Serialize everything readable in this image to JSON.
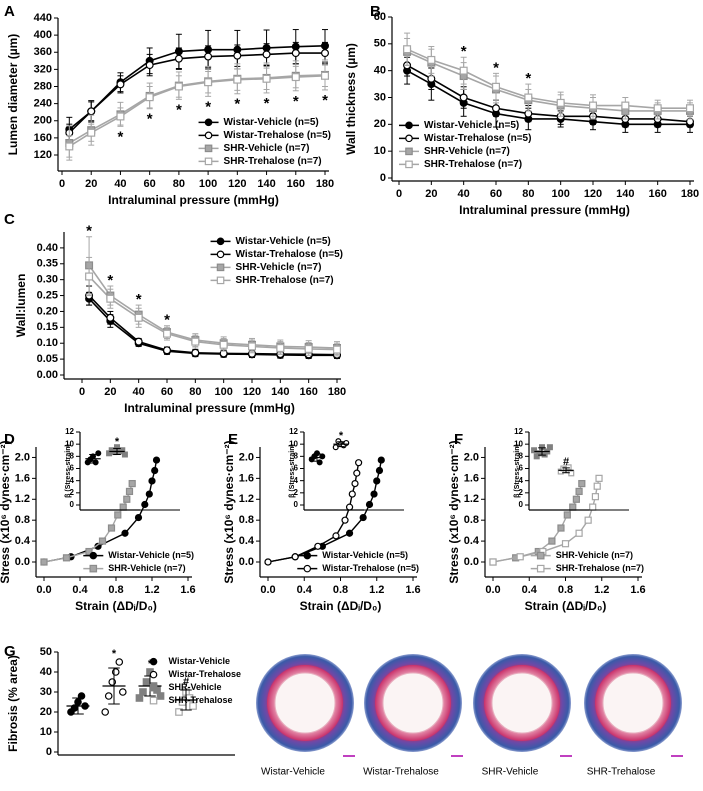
{
  "panel_labels": [
    "A",
    "B",
    "C",
    "D",
    "E",
    "F",
    "G"
  ],
  "chart_data": [
    {
      "type": "line",
      "xlabel": "Intraluminal pressure (mmHg)",
      "ylabel": "Lumen diameter (µm)",
      "x": [
        5,
        20,
        40,
        60,
        80,
        100,
        120,
        140,
        160,
        180
      ],
      "xlim": [
        0,
        180
      ],
      "xticks": [
        0,
        20,
        40,
        60,
        80,
        100,
        120,
        140,
        160,
        180
      ],
      "ylim": [
        120,
        440
      ],
      "yticks": [
        120,
        160,
        200,
        240,
        280,
        320,
        360,
        400,
        440
      ],
      "legend": "lower right",
      "annotation_position": "below",
      "annotations": [
        null,
        null,
        "*",
        "*",
        "*",
        "*",
        "*",
        "*",
        "*",
        "*"
      ],
      "series": [
        {
          "name": "Wistar-Vehicle (n=5)",
          "color": "#000000",
          "marker": "circle",
          "filled": true,
          "values": [
            180,
            222,
            290,
            340,
            362,
            366,
            366,
            370,
            373,
            375
          ],
          "errors": [
            28,
            25,
            22,
            30,
            40,
            45,
            45,
            42,
            40,
            38
          ]
        },
        {
          "name": "Wistar-Trehalose (n=5)",
          "color": "#000000",
          "marker": "circle",
          "filled": false,
          "values": [
            172,
            222,
            285,
            330,
            345,
            350,
            352,
            355,
            358,
            358
          ],
          "errors": [
            20,
            22,
            20,
            25,
            25,
            25,
            25,
            25,
            25,
            25
          ]
        },
        {
          "name": "SHR-Vehicle (n=7)",
          "color": "#a6a6a6",
          "marker": "square",
          "filled": true,
          "values": [
            148,
            178,
            215,
            258,
            282,
            292,
            298,
            300,
            305,
            307
          ],
          "errors": [
            40,
            35,
            28,
            30,
            32,
            35,
            35,
            35,
            35,
            35
          ]
        },
        {
          "name": "SHR-Trehalose (n=7)",
          "color": "#a6a6a6",
          "marker": "square",
          "filled": false,
          "values": [
            140,
            172,
            210,
            255,
            280,
            290,
            296,
            298,
            302,
            305
          ],
          "errors": [
            25,
            20,
            20,
            25,
            25,
            25,
            25,
            25,
            25,
            25
          ]
        }
      ]
    },
    {
      "type": "line",
      "xlabel": "Intraluminal pressure (mmHg)",
      "ylabel": "Wall thickness (µm)",
      "x": [
        5,
        20,
        40,
        60,
        80,
        100,
        120,
        140,
        160,
        180
      ],
      "xlim": [
        0,
        180
      ],
      "xticks": [
        0,
        20,
        40,
        60,
        80,
        100,
        120,
        140,
        160,
        180
      ],
      "ylim": [
        0,
        60
      ],
      "yticks": [
        0,
        10,
        20,
        30,
        40,
        50,
        60
      ],
      "legend": "lower left",
      "annotation_position": "above",
      "annotations": [
        null,
        null,
        "*",
        "*",
        "*",
        null,
        null,
        null,
        null,
        null
      ],
      "series": [
        {
          "name": "Wistar-Vehicle (n=5)",
          "color": "#000000",
          "marker": "circle",
          "filled": true,
          "values": [
            40,
            35,
            28,
            24,
            22,
            22,
            21,
            20,
            20,
            20
          ],
          "errors": [
            5,
            6,
            5,
            5,
            4,
            3,
            3,
            3,
            3,
            3
          ]
        },
        {
          "name": "Wistar-Trehalose (n=5)",
          "color": "#000000",
          "marker": "circle",
          "filled": false,
          "values": [
            42,
            37,
            30,
            26,
            24,
            23,
            23,
            22,
            22,
            21
          ],
          "errors": [
            4,
            4,
            4,
            3,
            3,
            3,
            3,
            3,
            3,
            2
          ]
        },
        {
          "name": "SHR-Vehicle (n=7)",
          "color": "#a6a6a6",
          "marker": "square",
          "filled": true,
          "values": [
            47,
            43,
            38,
            33,
            29,
            27,
            26,
            25,
            25,
            25
          ],
          "errors": [
            5,
            5,
            5,
            5,
            4,
            4,
            4,
            3,
            3,
            3
          ]
        },
        {
          "name": "SHR-Trehalose (n=7)",
          "color": "#a6a6a6",
          "marker": "square",
          "filled": false,
          "values": [
            48,
            44,
            40,
            34,
            30,
            28,
            27,
            27,
            26,
            26
          ],
          "errors": [
            6,
            5,
            5,
            5,
            5,
            4,
            4,
            3,
            3,
            3
          ]
        }
      ]
    },
    {
      "type": "line",
      "xlabel": "Intraluminal pressure (mmHg)",
      "ylabel": "Wall:lumen",
      "x": [
        5,
        20,
        40,
        60,
        80,
        100,
        120,
        140,
        160,
        180
      ],
      "xlim": [
        0,
        180
      ],
      "xticks": [
        0,
        20,
        40,
        60,
        80,
        100,
        120,
        140,
        160,
        180
      ],
      "ylim": [
        0,
        0.45
      ],
      "yticks": [
        {
          "value": 0,
          "label": "0.00"
        },
        0.05,
        {
          "value": 0.1,
          "label": "0.10"
        },
        0.15,
        {
          "value": 0.2,
          "label": "0.20"
        },
        0.25,
        {
          "value": 0.3,
          "label": "0.30"
        },
        0.35,
        {
          "value": 0.4,
          "label": "0.40"
        }
      ],
      "legend": "upper right",
      "annotation_position": "above",
      "annotations": [
        "*",
        "*",
        "*",
        "*",
        null,
        null,
        null,
        null,
        null,
        null
      ],
      "series": [
        {
          "name": "Wistar-Vehicle (n=5)",
          "color": "#000000",
          "marker": "circle",
          "filled": true,
          "values": [
            0.24,
            0.17,
            0.1,
            0.075,
            0.068,
            0.066,
            0.065,
            0.063,
            0.062,
            0.062
          ],
          "errors": [
            0.02,
            0.02,
            0.01,
            0.01,
            0.01,
            0.01,
            0.01,
            0.01,
            0.01,
            0.01
          ]
        },
        {
          "name": "Wistar-Trehalose (n=5)",
          "color": "#000000",
          "marker": "circle",
          "filled": false,
          "values": [
            0.25,
            0.18,
            0.105,
            0.078,
            0.07,
            0.068,
            0.067,
            0.066,
            0.065,
            0.064
          ],
          "errors": [
            0.03,
            0.02,
            0.01,
            0.01,
            0.01,
            0.01,
            0.01,
            0.01,
            0.01,
            0.01
          ]
        },
        {
          "name": "SHR-Vehicle (n=7)",
          "color": "#a6a6a6",
          "marker": "square",
          "filled": true,
          "values": [
            0.345,
            0.25,
            0.19,
            0.135,
            0.11,
            0.1,
            0.095,
            0.09,
            0.088,
            0.085
          ],
          "errors": [
            0.09,
            0.03,
            0.03,
            0.02,
            0.02,
            0.02,
            0.02,
            0.02,
            0.02,
            0.02
          ]
        },
        {
          "name": "SHR-Trehalose (n=7)",
          "color": "#a6a6a6",
          "marker": "square",
          "filled": false,
          "values": [
            0.31,
            0.24,
            0.18,
            0.13,
            0.105,
            0.095,
            0.09,
            0.085,
            0.082,
            0.08
          ],
          "errors": [
            0.06,
            0.03,
            0.03,
            0.02,
            0.02,
            0.02,
            0.02,
            0.02,
            0.02,
            0.02
          ]
        }
      ]
    },
    {
      "type": "scatter",
      "xlabel": "Strain (ΔDᵢ/D₀)",
      "ylabel": "Stress (x10⁶ dynes·cm⁻²)",
      "xlim": [
        0,
        1.6
      ],
      "xticks": [
        {
          "value": 0,
          "label": "0.0"
        },
        0.4,
        0.8,
        1.2,
        1.6
      ],
      "ylim": [
        0,
        2.2
      ],
      "yticks": [
        {
          "value": 0,
          "label": "0.0"
        },
        0.4,
        0.8,
        1.2,
        1.6,
        {
          "value": 2,
          "label": "2.0"
        }
      ],
      "legend": "lower right",
      "series": [
        {
          "name": "Wistar-Vehicle (n=5)",
          "color": "#000000",
          "marker": "circle",
          "filled": true,
          "x": [
            0,
            0.3,
            0.6,
            0.9,
            1.05,
            1.12,
            1.17,
            1.2,
            1.23,
            1.25
          ],
          "values": [
            0,
            0.1,
            0.3,
            0.55,
            0.85,
            1.1,
            1.3,
            1.55,
            1.75,
            1.95
          ]
        },
        {
          "name": "SHR-Vehicle (n=7)",
          "color": "#a6a6a6",
          "marker": "square",
          "filled": true,
          "x": [
            0,
            0.25,
            0.5,
            0.65,
            0.75,
            0.82,
            0.88,
            0.92,
            0.95,
            0.98
          ],
          "values": [
            0,
            0.08,
            0.2,
            0.4,
            0.65,
            0.9,
            1.05,
            1.2,
            1.35,
            1.5
          ]
        }
      ],
      "inset": {
        "type": "dot",
        "ylabel": "β (Stress-strain)",
        "ylim": [
          0,
          12
        ],
        "yticks": [
          0,
          2,
          4,
          6,
          8,
          10,
          12
        ],
        "points": [
          [
            7,
            7.5,
            8,
            7,
            8.5
          ],
          [
            8.5,
            9,
            8.7,
            9.5,
            8.8,
            9,
            8.3
          ]
        ],
        "means": [
          7.6,
          8.8
        ],
        "errors": [
          0.7,
          0.5
        ],
        "markers": [
          "circle",
          "square"
        ],
        "filled": [
          true,
          true
        ],
        "colors": [
          "#000000",
          "#808080"
        ],
        "annotations": [
          null,
          "*"
        ]
      }
    },
    {
      "type": "scatter",
      "xlabel": "Strain (ΔDᵢ/D₀)",
      "ylabel": "Stress (x10⁶ dynes·cm⁻²)",
      "xlim": [
        0,
        1.6
      ],
      "xticks": [
        {
          "value": 0,
          "label": "0.0"
        },
        0.4,
        0.8,
        1.2,
        1.6
      ],
      "ylim": [
        0,
        2.2
      ],
      "yticks": [
        {
          "value": 0,
          "label": "0.0"
        },
        0.4,
        0.8,
        1.2,
        1.6,
        {
          "value": 2,
          "label": "2.0"
        }
      ],
      "legend": "lower right",
      "series": [
        {
          "name": "Wistar-Vehicle (n=5)",
          "color": "#000000",
          "marker": "circle",
          "filled": true,
          "x": [
            0,
            0.3,
            0.6,
            0.9,
            1.05,
            1.12,
            1.17,
            1.2,
            1.23,
            1.25
          ],
          "values": [
            0,
            0.1,
            0.3,
            0.55,
            0.85,
            1.1,
            1.3,
            1.55,
            1.75,
            1.95
          ]
        },
        {
          "name": "Wistar-Trehalose (n=5)",
          "color": "#000000",
          "marker": "circle",
          "filled": false,
          "x": [
            0,
            0.3,
            0.55,
            0.75,
            0.85,
            0.9,
            0.93,
            0.96,
            0.98,
            1.0
          ],
          "values": [
            0,
            0.1,
            0.3,
            0.5,
            0.8,
            1.05,
            1.3,
            1.5,
            1.7,
            1.9
          ]
        }
      ],
      "inset": {
        "type": "dot",
        "ylabel": "β (Stress-strain)",
        "ylim": [
          0,
          12
        ],
        "yticks": [
          0,
          2,
          4,
          6,
          8,
          10,
          12
        ],
        "points": [
          [
            7.5,
            8,
            8.5,
            7,
            8
          ],
          [
            9.5,
            10.5,
            10,
            9.8,
            10.2
          ]
        ],
        "means": [
          7.8,
          10
        ],
        "errors": [
          0.6,
          0.4
        ],
        "markers": [
          "circle",
          "circle"
        ],
        "filled": [
          true,
          false
        ],
        "colors": [
          "#000000",
          "#000000"
        ],
        "annotations": [
          null,
          "*"
        ]
      }
    },
    {
      "type": "scatter",
      "xlabel": "Strain (ΔDᵢ/D₀)",
      "ylabel": "Stress (x10⁶ dynes·cm⁻²)",
      "xlim": [
        0,
        1.6
      ],
      "xticks": [
        {
          "value": 0,
          "label": "0.0"
        },
        0.4,
        0.8,
        1.2,
        1.6
      ],
      "ylim": [
        0,
        2.2
      ],
      "yticks": [
        {
          "value": 0,
          "label": "0.0"
        },
        0.4,
        0.8,
        1.2,
        1.6,
        {
          "value": 2,
          "label": "2.0"
        }
      ],
      "legend": "lower right",
      "series": [
        {
          "name": "SHR-Vehicle (n=7)",
          "color": "#a6a6a6",
          "marker": "square",
          "filled": true,
          "x": [
            0,
            0.25,
            0.5,
            0.65,
            0.75,
            0.82,
            0.88,
            0.92,
            0.95,
            0.98
          ],
          "values": [
            0,
            0.08,
            0.2,
            0.4,
            0.65,
            0.9,
            1.05,
            1.2,
            1.35,
            1.5
          ]
        },
        {
          "name": "SHR-Trehalose (n=7)",
          "color": "#a6a6a6",
          "marker": "square",
          "filled": false,
          "x": [
            0,
            0.3,
            0.55,
            0.8,
            0.95,
            1.05,
            1.1,
            1.13,
            1.15,
            1.17
          ],
          "values": [
            0,
            0.1,
            0.2,
            0.35,
            0.55,
            0.8,
            1.05,
            1.25,
            1.45,
            1.6
          ]
        }
      ],
      "inset": {
        "type": "dot",
        "ylabel": "β (Stress-strain)",
        "ylim": [
          0,
          12
        ],
        "yticks": [
          0,
          2,
          4,
          6,
          8,
          10,
          12
        ],
        "points": [
          [
            9,
            8,
            8.5,
            9.5,
            8.3,
            8.8,
            9.5
          ],
          [
            5.5,
            6,
            5.8,
            6.2,
            5.2
          ]
        ],
        "means": [
          8.8,
          5.7
        ],
        "errors": [
          0.6,
          0.4
        ],
        "markers": [
          "square",
          "square"
        ],
        "filled": [
          true,
          false
        ],
        "colors": [
          "#808080",
          "#a6a6a6"
        ],
        "annotations": [
          null,
          "#"
        ]
      }
    },
    {
      "type": "dot",
      "ylabel": "Fibrosis (% area)",
      "ylim": [
        0,
        50
      ],
      "yticks": [
        0,
        10,
        20,
        30,
        40,
        50
      ],
      "legend": "upper right",
      "categories": [
        "Wistar-Vehicle",
        "Wistar-Trehalose",
        "SHR-Vehicle",
        "SHR-Trehalose"
      ],
      "points": [
        [
          20,
          22,
          25,
          28,
          23
        ],
        [
          20,
          28,
          35,
          40,
          45,
          30
        ],
        [
          27,
          30,
          35,
          40,
          33,
          31,
          28
        ],
        [
          20,
          25,
          30,
          27,
          23
        ]
      ],
      "means": [
        23,
        33,
        33,
        26
      ],
      "errors": [
        4,
        9,
        5,
        5
      ],
      "markers": [
        "circle",
        "circle",
        "square",
        "square"
      ],
      "filled": [
        true,
        false,
        true,
        false
      ],
      "colors": [
        "#000000",
        "#000000",
        "#808080",
        "#a6a6a6"
      ],
      "annotations": [
        null,
        "*",
        "*",
        "#"
      ]
    }
  ],
  "histology": {
    "labels": [
      "Wistar-Vehicle",
      "Wistar-Trehalose",
      "SHR-Vehicle",
      "SHR-Trehalose"
    ]
  }
}
